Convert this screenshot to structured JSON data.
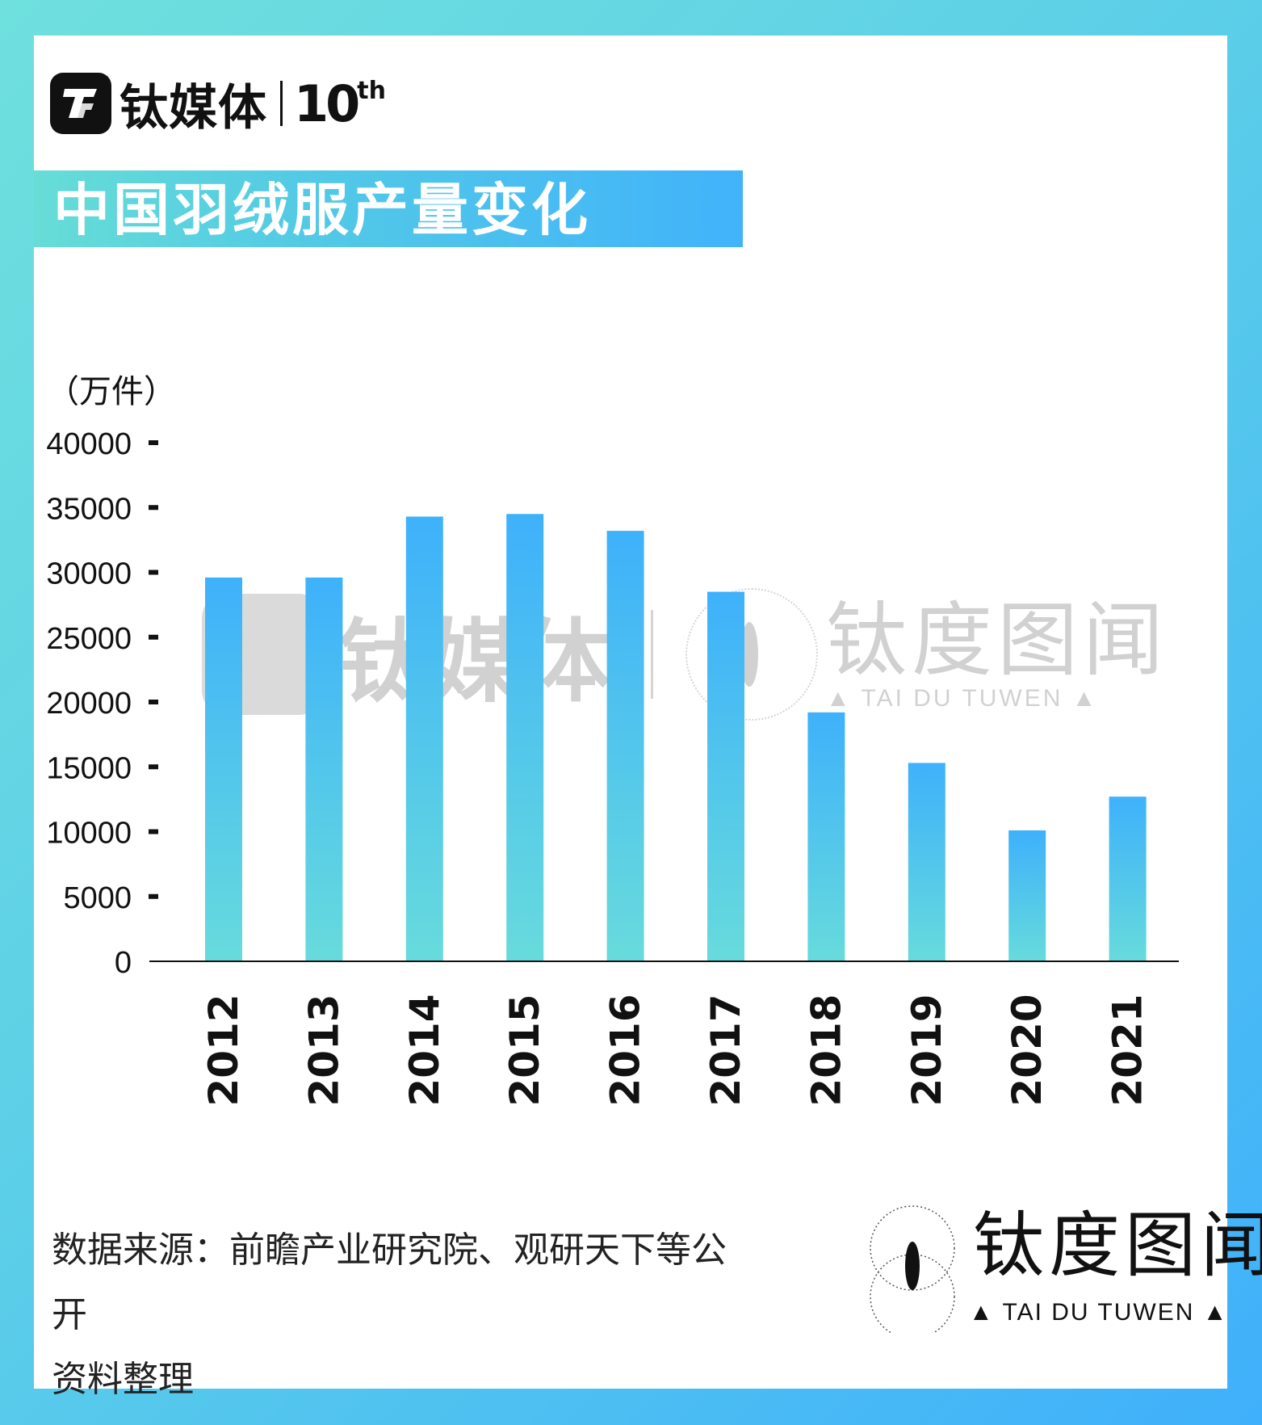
{
  "brand": {
    "logo_glyph": "TF",
    "name": "钛媒体",
    "anniversary_number": "10",
    "anniversary_suffix": "th"
  },
  "title": "中国羽绒服产量变化",
  "unit_label": "（万件）",
  "watermark": {
    "brand_name": "钛媒体",
    "cn": "钛度图闻",
    "en": "▲ TAI DU TUWEN ▲"
  },
  "source": {
    "line1": "数据来源：前瞻产业研究院、观研天下等公开",
    "line2": "资料整理"
  },
  "stamp": {
    "cn": "钛度图闻",
    "en": "▲ TAI DU TUWEN ▲"
  },
  "colors": {
    "bar_top": "#3eb1fb",
    "bar_bottom": "#67dbdc",
    "axis": "#111111",
    "frame_start": "#6fe0dd",
    "frame_end": "#3fb0fb"
  },
  "chart_data": {
    "type": "bar",
    "title": "中国羽绒服产量变化",
    "xlabel": "",
    "ylabel": "（万件）",
    "ylim": [
      0,
      40000
    ],
    "yticks": [
      0,
      5000,
      10000,
      15000,
      20000,
      25000,
      30000,
      35000,
      40000
    ],
    "categories": [
      "2012",
      "2013",
      "2014",
      "2015",
      "2016",
      "2017",
      "2018",
      "2019",
      "2020",
      "2021"
    ],
    "values": [
      29600,
      29600,
      34300,
      34500,
      33200,
      28500,
      19200,
      15300,
      10100,
      12700
    ],
    "grid": false,
    "legend": "none"
  }
}
